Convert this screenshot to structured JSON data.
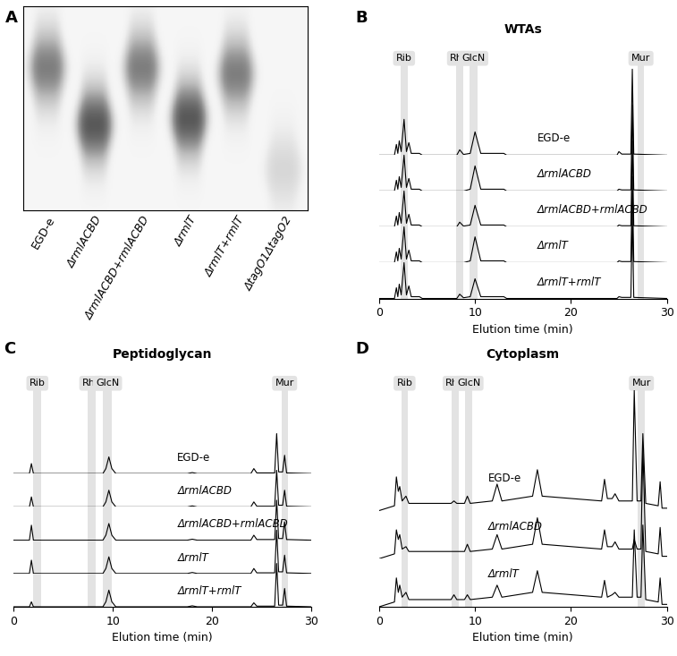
{
  "chart_data": [
    {
      "panel": "A",
      "type": "gel",
      "categories": [
        "EGD-e",
        "ΔrmlACBD",
        "ΔrmlACBD+rmlACBD",
        "ΔrmlT",
        "ΔrmlT+rmlT",
        "ΔtagO1ΔtagO2"
      ],
      "values": [
        0.3,
        0.58,
        0.3,
        0.55,
        0.33,
        0.8
      ],
      "intensity": [
        0.55,
        0.7,
        0.55,
        0.7,
        0.55,
        0.2
      ],
      "ylim": [
        1,
        0
      ],
      "tick_labels": "x"
    },
    {
      "panel": "B",
      "type": "line",
      "title": "WTAs",
      "xlabel": "Elution time (min)",
      "xlim": [
        0,
        30
      ],
      "xticks": [
        0,
        10,
        20,
        30
      ],
      "ylim": [
        0,
        2.5
      ],
      "tick_labels": "x",
      "color": "#000000",
      "regions": [
        {
          "label": "Rib",
          "start": 2.2,
          "end": 3.0
        },
        {
          "label": "Rha",
          "start": 8.0,
          "end": 8.8
        },
        {
          "label": "GlcN",
          "start": 9.4,
          "end": 10.3
        },
        {
          "label": "Mur",
          "start": 27.0,
          "end": 27.6
        }
      ],
      "series": [
        {
          "name": "EGD-e",
          "x": [
            0,
            1.6,
            1.8,
            1.95,
            2.1,
            2.3,
            2.6,
            2.85,
            3.1,
            3.35,
            4.2,
            4.5,
            8.1,
            8.4,
            8.8,
            9.5,
            10.0,
            10.6,
            13.0,
            13.3,
            24.8,
            25.0,
            25.3,
            26.25,
            26.4,
            26.55,
            30
          ],
          "values": [
            0,
            0,
            0.3,
            0.05,
            0.4,
            0.1,
            1.0,
            0.1,
            0.35,
            0.05,
            0.05,
            0,
            0,
            0.15,
            0.02,
            0.05,
            0.65,
            0.05,
            0.05,
            0,
            0,
            0.1,
            0.03,
            0.03,
            2.4,
            0.03,
            0
          ]
        },
        {
          "name": "ΔrmlACBD",
          "x": [
            0,
            1.6,
            1.8,
            1.95,
            2.1,
            2.3,
            2.6,
            2.85,
            3.1,
            3.35,
            4.2,
            4.5,
            8.1,
            8.4,
            8.8,
            9.5,
            10.0,
            10.6,
            13.0,
            13.3,
            24.8,
            25.0,
            25.3,
            26.25,
            26.4,
            26.55,
            30
          ],
          "values": [
            0,
            0,
            0.3,
            0.05,
            0.4,
            0.1,
            1.0,
            0.1,
            0.35,
            0.05,
            0.05,
            0,
            0,
            0,
            0,
            0.05,
            0.7,
            0.05,
            0.05,
            0,
            0,
            0.05,
            0.03,
            0.03,
            2.4,
            0.03,
            0
          ]
        },
        {
          "name": "ΔrmlACBD+rmlACBD",
          "x": [
            0,
            1.6,
            1.8,
            1.95,
            2.1,
            2.3,
            2.6,
            2.85,
            3.1,
            3.35,
            4.2,
            4.5,
            8.1,
            8.4,
            8.8,
            9.5,
            10.0,
            10.6,
            13.0,
            13.3,
            24.8,
            25.0,
            25.3,
            26.25,
            26.4,
            26.55,
            30
          ],
          "values": [
            0,
            0,
            0.3,
            0.05,
            0.4,
            0.1,
            1.0,
            0.1,
            0.35,
            0.05,
            0.05,
            0,
            0,
            0.13,
            0.02,
            0.05,
            0.6,
            0.05,
            0.05,
            0,
            0,
            0.05,
            0.03,
            0.03,
            2.4,
            0.03,
            0
          ]
        },
        {
          "name": "ΔrmlT",
          "x": [
            0,
            1.6,
            1.8,
            1.95,
            2.1,
            2.3,
            2.6,
            2.85,
            3.1,
            3.35,
            4.2,
            4.5,
            8.1,
            8.4,
            8.8,
            9.5,
            10.0,
            10.6,
            13.0,
            13.3,
            24.8,
            25.0,
            25.3,
            26.25,
            26.4,
            26.55,
            30
          ],
          "values": [
            0,
            0,
            0.3,
            0.05,
            0.4,
            0.1,
            1.0,
            0.1,
            0.35,
            0.05,
            0.05,
            0,
            0,
            0,
            0,
            0.05,
            0.72,
            0.05,
            0.05,
            0,
            0,
            0.05,
            0.03,
            0.03,
            2.4,
            0.03,
            0
          ]
        },
        {
          "name": "ΔrmlT+rmlT",
          "x": [
            0,
            1.6,
            1.8,
            1.95,
            2.1,
            2.3,
            2.6,
            2.85,
            3.1,
            3.35,
            4.2,
            4.5,
            8.1,
            8.4,
            8.8,
            9.5,
            10.0,
            10.6,
            13.0,
            13.3,
            24.8,
            25.0,
            25.3,
            26.25,
            26.4,
            26.55,
            30
          ],
          "values": [
            0,
            0,
            0.3,
            0.05,
            0.4,
            0.1,
            1.0,
            0.1,
            0.35,
            0.05,
            0.05,
            0,
            0,
            0.12,
            0.02,
            0.05,
            0.55,
            0.05,
            0.05,
            0,
            0,
            0.05,
            0.03,
            0.03,
            2.4,
            0.03,
            0
          ]
        }
      ]
    },
    {
      "panel": "C",
      "type": "line",
      "title": "Peptidoglycan",
      "xlabel": "Elution time (min)",
      "xlim": [
        0,
        30
      ],
      "xticks": [
        0,
        10,
        20,
        30
      ],
      "ylim": [
        0,
        2.5
      ],
      "tick_labels": "x",
      "color": "#000000",
      "regions": [
        {
          "label": "Rib",
          "start": 2.0,
          "end": 2.8
        },
        {
          "label": "Rha",
          "start": 7.5,
          "end": 8.3
        },
        {
          "label": "GlcN",
          "start": 9.0,
          "end": 9.9
        },
        {
          "label": "Mur",
          "start": 27.0,
          "end": 27.6
        }
      ],
      "series": [
        {
          "name": "EGD-e",
          "x": [
            0,
            1.6,
            1.8,
            2.0,
            9.0,
            9.3,
            9.6,
            9.9,
            10.3,
            17.5,
            18.0,
            18.5,
            23.9,
            24.2,
            24.5,
            26.3,
            26.5,
            26.7,
            27.1,
            27.3,
            27.5,
            30
          ],
          "values": [
            0,
            0,
            0.3,
            0,
            0,
            0.15,
            0.5,
            0.15,
            0,
            0,
            0.03,
            0,
            0,
            0.15,
            0.02,
            0.02,
            1.2,
            0.05,
            0.05,
            0.55,
            0.02,
            0
          ]
        },
        {
          "name": "ΔrmlACBD",
          "x": [
            0,
            1.6,
            1.8,
            2.0,
            9.0,
            9.3,
            9.6,
            9.9,
            10.3,
            17.5,
            18.0,
            18.5,
            23.9,
            24.2,
            24.5,
            26.3,
            26.5,
            26.7,
            27.1,
            27.3,
            27.5,
            30
          ],
          "values": [
            0,
            0,
            0.3,
            0,
            0,
            0.15,
            0.5,
            0.15,
            0,
            0,
            0.03,
            0,
            0,
            0.15,
            0.02,
            0.02,
            1.1,
            0.05,
            0.05,
            0.5,
            0.02,
            0
          ]
        },
        {
          "name": "ΔrmlACBD+rmlACBD",
          "x": [
            0,
            1.6,
            1.8,
            2.0,
            9.0,
            9.3,
            9.6,
            9.9,
            10.3,
            17.5,
            18.0,
            18.5,
            23.9,
            24.2,
            24.5,
            26.3,
            26.5,
            26.7,
            27.1,
            27.3,
            27.5,
            30
          ],
          "values": [
            0,
            0,
            0.45,
            0,
            0,
            0.15,
            0.5,
            0.15,
            0,
            0,
            0.03,
            0,
            0,
            0.15,
            0.02,
            0.02,
            1.2,
            0.05,
            0.05,
            0.55,
            0.02,
            0
          ]
        },
        {
          "name": "ΔrmlT",
          "x": [
            0,
            1.6,
            1.8,
            2.0,
            9.0,
            9.3,
            9.6,
            9.9,
            10.3,
            17.5,
            18.0,
            18.5,
            23.9,
            24.2,
            24.5,
            26.3,
            26.5,
            26.7,
            27.1,
            27.3,
            27.5,
            30
          ],
          "values": [
            0,
            0,
            0.4,
            0,
            0,
            0.15,
            0.5,
            0.15,
            0,
            0,
            0.03,
            0,
            0,
            0.15,
            0.02,
            0.02,
            1.3,
            0.05,
            0.05,
            0.55,
            0.02,
            0
          ]
        },
        {
          "name": "ΔrmlT+rmlT",
          "x": [
            0,
            1.6,
            1.8,
            2.0,
            9.0,
            9.3,
            9.6,
            9.9,
            10.3,
            17.5,
            18.0,
            18.5,
            23.9,
            24.2,
            24.5,
            26.3,
            26.5,
            26.7,
            27.1,
            27.3,
            27.5,
            30
          ],
          "values": [
            0,
            0,
            0.15,
            0,
            0,
            0.15,
            0.5,
            0.15,
            0,
            0,
            0.03,
            0,
            0,
            0.12,
            0.02,
            0.02,
            1.3,
            0.05,
            0.05,
            0.55,
            0.02,
            0
          ]
        }
      ]
    },
    {
      "panel": "D",
      "type": "line",
      "title": "Cytoplasm",
      "xlabel": "Elution time (min)",
      "xlim": [
        0,
        30
      ],
      "xticks": [
        0,
        10,
        20,
        30
      ],
      "ylim": [
        0,
        2.5
      ],
      "tick_labels": "x",
      "color": "#000000",
      "regions": [
        {
          "label": "Rib",
          "start": 2.3,
          "end": 3.0
        },
        {
          "label": "Rha",
          "start": 7.6,
          "end": 8.3
        },
        {
          "label": "GlcN",
          "start": 9.0,
          "end": 9.7
        },
        {
          "label": "Mur",
          "start": 27.0,
          "end": 27.7
        }
      ],
      "series": [
        {
          "name": "EGD-e",
          "x": [
            0,
            1.6,
            1.8,
            2.0,
            2.15,
            2.4,
            2.8,
            3.1,
            7.5,
            7.8,
            8.1,
            8.9,
            9.2,
            9.5,
            11.8,
            12.3,
            12.8,
            16.0,
            16.5,
            17.0,
            23.2,
            23.5,
            23.8,
            24.3,
            24.6,
            25.0,
            26.4,
            26.6,
            26.9,
            27.3,
            27.5,
            27.8,
            29.1,
            29.3,
            29.5,
            30
          ],
          "values": [
            0,
            0.1,
            0.7,
            0.4,
            0.5,
            0.2,
            0.3,
            0.15,
            0.15,
            0.2,
            0.15,
            0.15,
            0.3,
            0.15,
            0.2,
            0.55,
            0.2,
            0.3,
            0.85,
            0.3,
            0.2,
            0.65,
            0.25,
            0.25,
            0.35,
            0.2,
            0.2,
            2.5,
            0.2,
            0.2,
            1.6,
            0.15,
            0.1,
            0.6,
            0.05,
            0.05
          ]
        },
        {
          "name": "ΔrmlACBD",
          "x": [
            0,
            1.6,
            1.8,
            2.0,
            2.15,
            2.4,
            2.8,
            3.1,
            7.5,
            7.8,
            8.1,
            8.9,
            9.2,
            9.5,
            11.8,
            12.3,
            12.8,
            16.0,
            16.5,
            17.0,
            23.2,
            23.5,
            23.8,
            24.3,
            24.6,
            25.0,
            26.4,
            26.6,
            26.9,
            27.3,
            27.5,
            27.8,
            29.1,
            29.3,
            29.5,
            30
          ],
          "values": [
            0,
            0.1,
            0.6,
            0.4,
            0.5,
            0.2,
            0.25,
            0.15,
            0.15,
            0.15,
            0.15,
            0.15,
            0.3,
            0.15,
            0.2,
            0.5,
            0.2,
            0.3,
            0.85,
            0.3,
            0.2,
            0.6,
            0.25,
            0.25,
            0.35,
            0.2,
            0.2,
            0.4,
            0.2,
            0.2,
            2.3,
            0.15,
            0.1,
            0.65,
            0.05,
            0.05
          ]
        },
        {
          "name": "ΔrmlT",
          "x": [
            0,
            1.6,
            1.8,
            2.0,
            2.15,
            2.4,
            2.8,
            3.1,
            7.5,
            7.8,
            8.1,
            8.9,
            9.2,
            9.5,
            11.8,
            12.3,
            12.8,
            16.0,
            16.5,
            17.0,
            23.2,
            23.5,
            23.8,
            24.3,
            24.6,
            25.0,
            26.4,
            26.6,
            26.9,
            27.3,
            27.5,
            27.8,
            29.1,
            29.3,
            29.5,
            30
          ],
          "values": [
            0,
            0.1,
            0.6,
            0.3,
            0.45,
            0.2,
            0.3,
            0.15,
            0.15,
            0.25,
            0.15,
            0.15,
            0.25,
            0.15,
            0.2,
            0.45,
            0.2,
            0.3,
            0.75,
            0.3,
            0.2,
            0.55,
            0.2,
            0.25,
            0.3,
            0.2,
            0.2,
            1.6,
            0.2,
            0.2,
            1.7,
            0.15,
            0.1,
            0.6,
            0.05,
            0.05
          ]
        }
      ]
    }
  ]
}
